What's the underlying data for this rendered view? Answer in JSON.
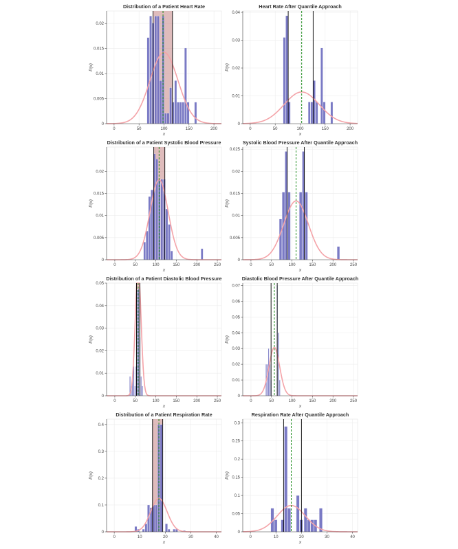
{
  "chart_data": [
    {
      "type": "bar",
      "title": "Distribution of a Patient Heart Rate",
      "xlabel": "x",
      "ylabel": "P(x)",
      "xlim": [
        -15,
        215
      ],
      "ylim": [
        0,
        0.0225
      ],
      "xticks": [
        "0",
        "50",
        "100",
        "150",
        "200"
      ],
      "xtick_values": [
        0,
        50,
        100,
        150,
        200
      ],
      "yticks": [
        "0",
        "0.005",
        "0.01",
        "0.015",
        "0.02"
      ],
      "ytick_values": [
        0,
        0.005,
        0.01,
        0.015,
        0.02
      ],
      "grid": true,
      "legend": "none",
      "bar_color": "#6b6bbf",
      "bars": [
        {
          "x0": 66,
          "x1": 71,
          "y": 0.0172
        },
        {
          "x0": 71,
          "x1": 76,
          "y": 0.0215
        },
        {
          "x0": 76,
          "x1": 81,
          "y": 0.0201
        },
        {
          "x0": 81,
          "x1": 86,
          "y": 0.0215
        },
        {
          "x0": 86,
          "x1": 91,
          "y": 0.0215
        },
        {
          "x0": 91,
          "x1": 96,
          "y": 0.0086
        },
        {
          "x0": 96,
          "x1": 101,
          "y": 0.0215
        },
        {
          "x0": 101,
          "x1": 106,
          "y": 0.0021
        },
        {
          "x0": 106,
          "x1": 111,
          "y": 0.0021
        },
        {
          "x0": 111,
          "x1": 116,
          "y": 0.0072
        },
        {
          "x0": 116,
          "x1": 121,
          "y": 0.0043
        },
        {
          "x0": 121,
          "x1": 126,
          "y": 0.0086
        },
        {
          "x0": 126,
          "x1": 131,
          "y": 0.0043
        },
        {
          "x0": 131,
          "x1": 136,
          "y": 0.0043
        },
        {
          "x0": 136,
          "x1": 141,
          "y": 0.0043
        },
        {
          "x0": 141,
          "x1": 146,
          "y": 0.0151
        },
        {
          "x0": 146,
          "x1": 151,
          "y": 0.0043
        },
        {
          "x0": 151,
          "x1": 156,
          "y": 0.0
        },
        {
          "x0": 161,
          "x1": 166,
          "y": 0.0043
        }
      ],
      "curve": {
        "mean": 100,
        "sd": 28,
        "color": "#f4a3a8"
      },
      "shade": {
        "x0": 78,
        "x1": 117,
        "color": "#c98f8f"
      },
      "vlines": [
        {
          "x": 78,
          "color": "#000000",
          "style": "solid"
        },
        {
          "x": 117,
          "color": "#000000",
          "style": "solid"
        },
        {
          "x": 98,
          "color": "#1e8c1e",
          "style": "dashed"
        }
      ]
    },
    {
      "type": "bar",
      "title": "Heart Rate After Quantile Approach",
      "xlabel": "x",
      "ylabel": "P(x)",
      "xlim": [
        -15,
        215
      ],
      "ylim": [
        0,
        0.0405
      ],
      "xticks": [
        "0",
        "50",
        "100",
        "150",
        "200"
      ],
      "xtick_values": [
        0,
        50,
        100,
        150,
        200
      ],
      "yticks": [
        "0",
        "0.01",
        "0.02",
        "0.03",
        "0.04"
      ],
      "ytick_values": [
        0,
        0.01,
        0.02,
        0.03,
        0.04
      ],
      "grid": true,
      "legend": "none",
      "bar_color": "#6b6bbf",
      "bars": [
        {
          "x0": 66,
          "x1": 71,
          "y": 0.031
        },
        {
          "x0": 71,
          "x1": 76,
          "y": 0.0388
        },
        {
          "x0": 76,
          "x1": 81,
          "y": 0.0078
        },
        {
          "x0": 116,
          "x1": 121,
          "y": 0.0078
        },
        {
          "x0": 121,
          "x1": 126,
          "y": 0.0078
        },
        {
          "x0": 126,
          "x1": 131,
          "y": 0.0155
        },
        {
          "x0": 131,
          "x1": 136,
          "y": 0.0078
        },
        {
          "x0": 141,
          "x1": 146,
          "y": 0.0272
        },
        {
          "x0": 146,
          "x1": 151,
          "y": 0.0078
        },
        {
          "x0": 161,
          "x1": 166,
          "y": 0.0078
        }
      ],
      "curve": {
        "mean": 103,
        "sd": 35,
        "color": "#f4a3a8"
      },
      "shade": null,
      "vlines": [
        {
          "x": 76,
          "color": "#000000",
          "style": "solid"
        },
        {
          "x": 126,
          "color": "#000000",
          "style": "solid"
        },
        {
          "x": 103,
          "color": "#1e8c1e",
          "style": "dashed"
        }
      ]
    },
    {
      "type": "bar",
      "title": "Distribution of a Patient Systolic Blood Pressure",
      "xlabel": "x",
      "ylabel": "P(x)",
      "xlim": [
        -20,
        260
      ],
      "ylim": [
        0,
        0.0255
      ],
      "xticks": [
        "0",
        "50",
        "100",
        "150",
        "200",
        "250"
      ],
      "xtick_values": [
        0,
        50,
        100,
        150,
        200,
        250
      ],
      "yticks": [
        "0",
        "0.005",
        "0.01",
        "0.015",
        "0.02"
      ],
      "ytick_values": [
        0,
        0.005,
        0.01,
        0.015,
        0.02
      ],
      "grid": true,
      "legend": "none",
      "bar_color": "#6b6bbf",
      "bars": [
        {
          "x0": 70,
          "x1": 76,
          "y": 0.004
        },
        {
          "x0": 76,
          "x1": 82,
          "y": 0.0065
        },
        {
          "x0": 82,
          "x1": 88,
          "y": 0.0143
        },
        {
          "x0": 88,
          "x1": 94,
          "y": 0.0158
        },
        {
          "x0": 94,
          "x1": 100,
          "y": 0.024
        },
        {
          "x0": 100,
          "x1": 106,
          "y": 0.0228
        },
        {
          "x0": 106,
          "x1": 112,
          "y": 0.0182
        },
        {
          "x0": 112,
          "x1": 118,
          "y": 0.0182
        },
        {
          "x0": 118,
          "x1": 124,
          "y": 0.0182
        },
        {
          "x0": 124,
          "x1": 130,
          "y": 0.0115
        },
        {
          "x0": 130,
          "x1": 136,
          "y": 0.008
        },
        {
          "x0": 136,
          "x1": 142,
          "y": 0.002
        },
        {
          "x0": 210,
          "x1": 216,
          "y": 0.0025
        }
      ],
      "curve": {
        "mean": 108,
        "sd": 22,
        "color": "#f4a3a8"
      },
      "shade": {
        "x0": 95,
        "x1": 122,
        "color": "#c98f8f"
      },
      "vlines": [
        {
          "x": 95,
          "color": "#000000",
          "style": "solid"
        },
        {
          "x": 122,
          "color": "#000000",
          "style": "solid"
        },
        {
          "x": 108,
          "color": "#1e8c1e",
          "style": "dashed"
        }
      ]
    },
    {
      "type": "bar",
      "title": "Systolic Blood Pressure After Quantile Approach",
      "xlabel": "x",
      "ylabel": "P(x)",
      "xlim": [
        -20,
        260
      ],
      "ylim": [
        0,
        0.0255
      ],
      "xticks": [
        "0",
        "50",
        "100",
        "150",
        "200",
        "250"
      ],
      "xtick_values": [
        0,
        50,
        100,
        150,
        200,
        250
      ],
      "yticks": [
        "0",
        "0.005",
        "0.01",
        "0.015",
        "0.02",
        "0.025"
      ],
      "ytick_values": [
        0,
        0.005,
        0.01,
        0.015,
        0.02,
        0.025
      ],
      "grid": true,
      "legend": "none",
      "bar_color": "#6b6bbf",
      "bars": [
        {
          "x0": 69,
          "x1": 76,
          "y": 0.0092
        },
        {
          "x0": 76,
          "x1": 83,
          "y": 0.0153
        },
        {
          "x0": 83,
          "x1": 90,
          "y": 0.0245
        },
        {
          "x0": 90,
          "x1": 97,
          "y": 0.0153
        },
        {
          "x0": 97,
          "x1": 104,
          "y": 0.0
        },
        {
          "x0": 118,
          "x1": 125,
          "y": 0.0153
        },
        {
          "x0": 125,
          "x1": 132,
          "y": 0.0245
        },
        {
          "x0": 132,
          "x1": 139,
          "y": 0.0153
        },
        {
          "x0": 210,
          "x1": 217,
          "y": 0.003
        }
      ],
      "curve": {
        "mean": 110,
        "sd": 30,
        "color": "#f4a3a8"
      },
      "shade": null,
      "vlines": [
        {
          "x": 88,
          "color": "#000000",
          "style": "solid"
        },
        {
          "x": 130,
          "color": "#000000",
          "style": "solid"
        },
        {
          "x": 110,
          "color": "#1e8c1e",
          "style": "dashed"
        }
      ]
    },
    {
      "type": "bar",
      "title": "Distribution of a Patient Diastolic Blood Pressure",
      "xlabel": "x",
      "ylabel": "P(x)",
      "xlim": [
        -20,
        260
      ],
      "ylim": [
        0,
        0.05
      ],
      "xticks": [
        "0",
        "50",
        "100",
        "150",
        "200",
        "250"
      ],
      "xtick_values": [
        0,
        50,
        100,
        150,
        200,
        250
      ],
      "yticks": [
        "0",
        "0.01",
        "0.02",
        "0.03",
        "0.04",
        "0.05"
      ],
      "ytick_values": [
        0,
        0.01,
        0.02,
        0.03,
        0.04,
        0.05
      ],
      "grid": true,
      "legend": "none",
      "bar_color": "#6b6bbf",
      "bars": [
        {
          "x0": 36,
          "x1": 39,
          "y": 0.0086
        },
        {
          "x0": 39,
          "x1": 42,
          "y": 0.0043
        },
        {
          "x0": 42,
          "x1": 45,
          "y": 0.0086
        },
        {
          "x0": 45,
          "x1": 48,
          "y": 0.013
        },
        {
          "x0": 48,
          "x1": 51,
          "y": 0.0043
        },
        {
          "x0": 51,
          "x1": 54,
          "y": 0.013
        },
        {
          "x0": 54,
          "x1": 57,
          "y": 0.047
        },
        {
          "x0": 57,
          "x1": 60,
          "y": 0.0473
        },
        {
          "x0": 60,
          "x1": 63,
          "y": 0.0259
        },
        {
          "x0": 63,
          "x1": 66,
          "y": 0.0086
        },
        {
          "x0": 66,
          "x1": 69,
          "y": 0.0043
        }
      ],
      "curve": {
        "mean": 57,
        "sd": 7,
        "color": "#f4a3a8"
      },
      "shade": {
        "x0": 53,
        "x1": 61,
        "color": "#c98f8f"
      },
      "vlines": [
        {
          "x": 53,
          "color": "#000000",
          "style": "solid"
        },
        {
          "x": 61,
          "color": "#000000",
          "style": "solid"
        },
        {
          "x": 57,
          "color": "#1e8c1e",
          "style": "dashed"
        }
      ]
    },
    {
      "type": "bar",
      "title": "Diastolic Blood Pressure After Quantile Approach",
      "xlabel": "x",
      "ylabel": "P(x)",
      "xlim": [
        -20,
        260
      ],
      "ylim": [
        0,
        0.0715
      ],
      "xticks": [
        "0",
        "50",
        "100",
        "150",
        "200",
        "250"
      ],
      "xtick_values": [
        0,
        50,
        100,
        150,
        200,
        250
      ],
      "yticks": [
        "0",
        "0.01",
        "0.02",
        "0.03",
        "0.04",
        "0.05",
        "0.06",
        "0.07"
      ],
      "ytick_values": [
        0,
        0.01,
        0.02,
        0.03,
        0.04,
        0.05,
        0.06,
        0.07
      ],
      "grid": true,
      "legend": "none",
      "bar_color": "#6b6bbf",
      "bars": [
        {
          "x0": 36,
          "x1": 39,
          "y": 0.02
        },
        {
          "x0": 39,
          "x1": 42,
          "y": 0.02
        },
        {
          "x0": 42,
          "x1": 45,
          "y": 0.03
        },
        {
          "x0": 45,
          "x1": 48,
          "y": 0.02
        },
        {
          "x0": 48,
          "x1": 51,
          "y": 0.01
        },
        {
          "x0": 63,
          "x1": 66,
          "y": 0.07
        },
        {
          "x0": 66,
          "x1": 69,
          "y": 0.04
        },
        {
          "x0": 69,
          "x1": 72,
          "y": 0.01
        }
      ],
      "curve": {
        "mean": 57,
        "sd": 13,
        "color": "#f4a3a8"
      },
      "shade": null,
      "vlines": [
        {
          "x": 49,
          "color": "#000000",
          "style": "solid"
        },
        {
          "x": 64,
          "color": "#000000",
          "style": "solid"
        },
        {
          "x": 57,
          "color": "#1e8c1e",
          "style": "dashed"
        }
      ]
    },
    {
      "type": "bar",
      "title": "Distribution of a Patient Respiration Rate",
      "xlabel": "x",
      "ylabel": "P(x)",
      "xlim": [
        -3,
        42
      ],
      "ylim": [
        0,
        0.42
      ],
      "xticks": [
        "0",
        "10",
        "20",
        "30",
        "40"
      ],
      "xtick_values": [
        0,
        10,
        20,
        30,
        40
      ],
      "yticks": [
        "0",
        "0.1",
        "0.2",
        "0.3",
        "0.4"
      ],
      "ytick_values": [
        0,
        0.1,
        0.2,
        0.3,
        0.4
      ],
      "grid": true,
      "legend": "none",
      "bar_color": "#6b6bbf",
      "bars": [
        {
          "x0": 8,
          "x1": 9,
          "y": 0.02
        },
        {
          "x0": 9,
          "x1": 10,
          "y": 0.01
        },
        {
          "x0": 11,
          "x1": 12,
          "y": 0.01
        },
        {
          "x0": 12,
          "x1": 13,
          "y": 0.03
        },
        {
          "x0": 13,
          "x1": 14,
          "y": 0.1
        },
        {
          "x0": 14,
          "x1": 15,
          "y": 0.09
        },
        {
          "x0": 15,
          "x1": 16,
          "y": 0.1
        },
        {
          "x0": 16,
          "x1": 17,
          "y": 0.1
        },
        {
          "x0": 17,
          "x1": 18,
          "y": 0.4
        },
        {
          "x0": 18,
          "x1": 19,
          "y": 0.4
        },
        {
          "x0": 20,
          "x1": 21,
          "y": 0.03
        },
        {
          "x0": 21,
          "x1": 22,
          "y": 0.01
        },
        {
          "x0": 23,
          "x1": 24,
          "y": 0.01
        },
        {
          "x0": 24,
          "x1": 25,
          "y": 0.01
        },
        {
          "x0": 27,
          "x1": 28,
          "y": 0.005
        }
      ],
      "curve": {
        "mean": 17.5,
        "sd": 3.2,
        "color": "#f4a3a8"
      },
      "shade": {
        "x0": 15,
        "x1": 19,
        "color": "#c98f8f"
      },
      "vlines": [
        {
          "x": 15,
          "color": "#000000",
          "style": "solid"
        },
        {
          "x": 19,
          "color": "#000000",
          "style": "solid"
        },
        {
          "x": 17.5,
          "color": "#1e8c1e",
          "style": "dashed"
        }
      ]
    },
    {
      "type": "bar",
      "title": "Respiration Rate After Quantile Approach",
      "xlabel": "x",
      "ylabel": "P(x)",
      "xlim": [
        -3,
        42
      ],
      "ylim": [
        0,
        0.31
      ],
      "xticks": [
        "0",
        "10",
        "20",
        "30",
        "40"
      ],
      "xtick_values": [
        0,
        10,
        20,
        30,
        40
      ],
      "yticks": [
        "0",
        "0.05",
        "0.1",
        "0.15",
        "0.2",
        "0.25",
        "0.3"
      ],
      "ytick_values": [
        0,
        0.05,
        0.1,
        0.15,
        0.2,
        0.25,
        0.3
      ],
      "grid": true,
      "legend": "none",
      "bar_color": "#6b6bbf",
      "bars": [
        {
          "x0": 8,
          "x1": 9.3,
          "y": 0.065
        },
        {
          "x0": 9.3,
          "x1": 10.6,
          "y": 0.033
        },
        {
          "x0": 12,
          "x1": 13.3,
          "y": 0.033
        },
        {
          "x0": 13.3,
          "x1": 14.6,
          "y": 0.29
        },
        {
          "x0": 14.6,
          "x1": 15.9,
          "y": 0.065
        },
        {
          "x0": 18,
          "x1": 19.3,
          "y": 0.1
        },
        {
          "x0": 19.3,
          "x1": 20.6,
          "y": 0.033
        },
        {
          "x0": 21,
          "x1": 22.3,
          "y": 0.065
        },
        {
          "x0": 22.3,
          "x1": 23.6,
          "y": 0.033
        },
        {
          "x0": 23.6,
          "x1": 24.9,
          "y": 0.033
        },
        {
          "x0": 24.9,
          "x1": 26.2,
          "y": 0.033
        },
        {
          "x0": 27,
          "x1": 28.3,
          "y": 0.065
        }
      ],
      "curve": {
        "mean": 16,
        "sd": 5.5,
        "color": "#f4a3a8"
      },
      "shade": null,
      "vlines": [
        {
          "x": 13,
          "color": "#000000",
          "style": "solid"
        },
        {
          "x": 20,
          "color": "#000000",
          "style": "solid"
        },
        {
          "x": 16,
          "color": "#1e8c1e",
          "style": "dashed"
        }
      ]
    }
  ]
}
